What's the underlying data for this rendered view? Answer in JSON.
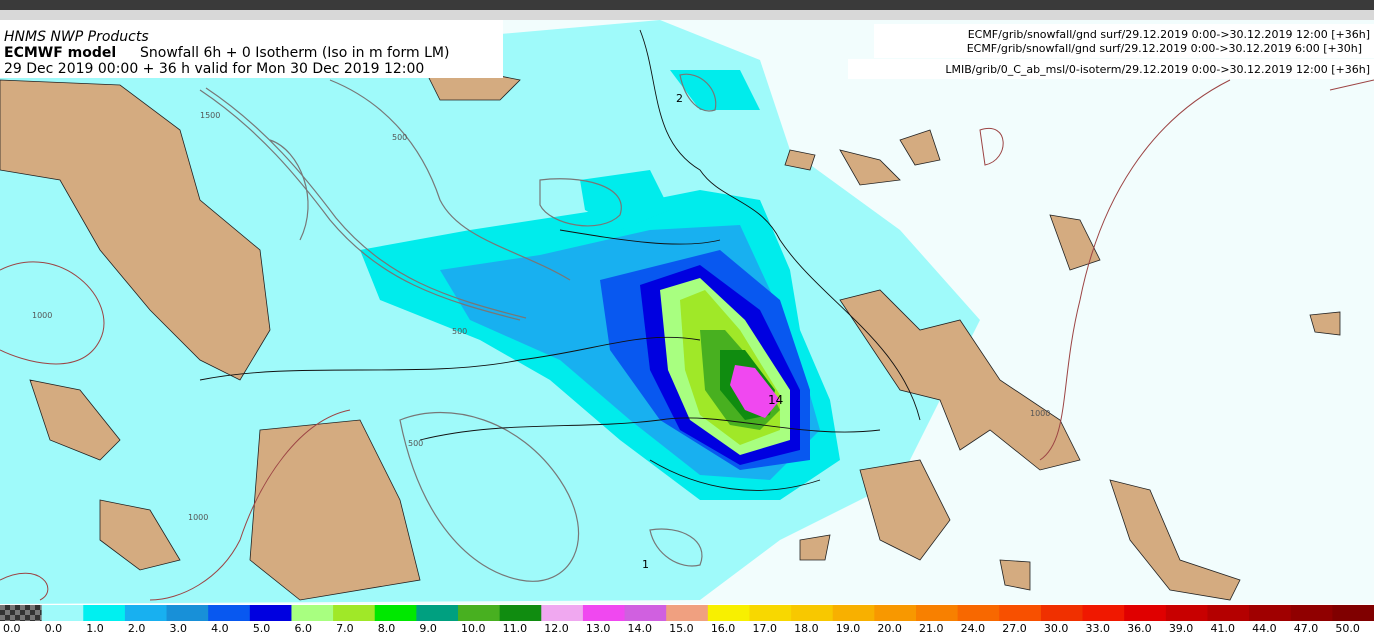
{
  "header": {
    "provider": "HNMS NWP Products",
    "model": "ECMWF model",
    "product": "Snowfall 6h + 0 Isotherm (Iso in m form LM)",
    "validity": "29 Dec 2019 00:00 + 36 h valid for Mon 30 Dec 2019 12:00"
  },
  "sources": [
    "ECMF/grib/snowfall/gnd surf/29.12.2019 0:00->30.12.2019 12:00 [+36h]",
    "ECMF/grib/snowfall/gnd surf/29.12.2019 0:00->30.12.2019 6:00 [+30h]",
    "LMIB/grib/0_C_ab_msl/0-isoterm/29.12.2019 0:00->30.12.2019 12:00 [+36h]"
  ],
  "contour_labels": [
    "2",
    "14",
    "1",
    "500",
    "500",
    "500",
    "1000",
    "1000",
    "1000",
    "1500"
  ],
  "colorbar": [
    {
      "label": "0.0",
      "color": "checker"
    },
    {
      "label": "0.0",
      "color": "#9ffafa"
    },
    {
      "label": "1.0",
      "color": "#00f0f0"
    },
    {
      "label": "2.0",
      "color": "#18b0f0"
    },
    {
      "label": "3.0",
      "color": "#1890d8"
    },
    {
      "label": "4.0",
      "color": "#0858f0"
    },
    {
      "label": "5.0",
      "color": "#0000e0"
    },
    {
      "label": "6.0",
      "color": "#a8ff80"
    },
    {
      "label": "7.0",
      "color": "#a0e828"
    },
    {
      "label": "8.0",
      "color": "#00e800"
    },
    {
      "label": "9.0",
      "color": "#00a080"
    },
    {
      "label": "10.0",
      "color": "#48b020"
    },
    {
      "label": "11.0",
      "color": "#108c10"
    },
    {
      "label": "12.0",
      "color": "#f0a8f0"
    },
    {
      "label": "13.0",
      "color": "#f048f0"
    },
    {
      "label": "14.0",
      "color": "#d060e0"
    },
    {
      "label": "15.0",
      "color": "#f0a080"
    },
    {
      "label": "16.0",
      "color": "#f8f000"
    },
    {
      "label": "17.0",
      "color": "#f8d800"
    },
    {
      "label": "18.0",
      "color": "#f8c800"
    },
    {
      "label": "19.0",
      "color": "#f8b000"
    },
    {
      "label": "20.0",
      "color": "#f89800"
    },
    {
      "label": "21.0",
      "color": "#f88000"
    },
    {
      "label": "24.0",
      "color": "#f86800"
    },
    {
      "label": "27.0",
      "color": "#f85000"
    },
    {
      "label": "30.0",
      "color": "#f03000"
    },
    {
      "label": "33.0",
      "color": "#f01800"
    },
    {
      "label": "36.0",
      "color": "#e00000"
    },
    {
      "label": "39.0",
      "color": "#c80000"
    },
    {
      "label": "41.0",
      "color": "#b40000"
    },
    {
      "label": "44.0",
      "color": "#a00000"
    },
    {
      "label": "47.0",
      "color": "#900000"
    },
    {
      "label": "50.0",
      "color": "#800000"
    }
  ]
}
